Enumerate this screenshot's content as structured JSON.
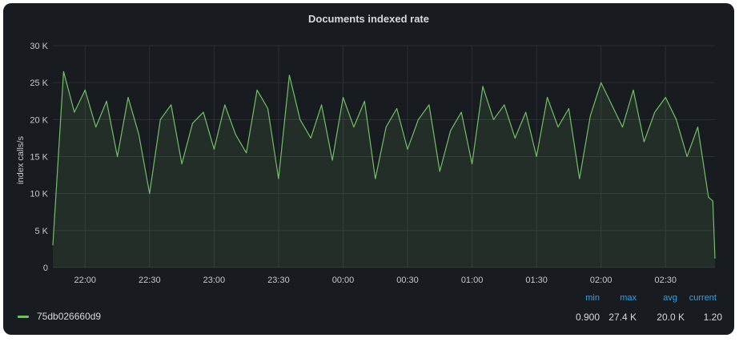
{
  "panel": {
    "title": "Documents indexed rate"
  },
  "legend": {
    "series_name": "75db026660d9",
    "headers": {
      "min": "min",
      "max": "max",
      "avg": "avg",
      "current": "current"
    },
    "values": {
      "min": "0.900",
      "max": "27.4 K",
      "avg": "20.0 K",
      "current": "1.20"
    }
  },
  "colors": {
    "series": "#73bf69",
    "fill": "rgba(115,191,105,0.12)",
    "grid": "#2c3035",
    "text": "#c7c9cc"
  },
  "chart_data": {
    "type": "area",
    "title": "Documents indexed rate",
    "xlabel": "",
    "ylabel": "index calls/s",
    "ylim": [
      0,
      30000
    ],
    "xlim": [
      "21:45",
      "02:53"
    ],
    "x_ticks": [
      "22:00",
      "22:30",
      "23:00",
      "23:30",
      "00:00",
      "00:30",
      "01:00",
      "01:30",
      "02:00",
      "02:30"
    ],
    "y_ticks": [
      "0",
      "5 K",
      "10 K",
      "15 K",
      "20 K",
      "25 K",
      "30 K"
    ],
    "grid": true,
    "legend_position": "bottom-left",
    "series": [
      {
        "name": "75db026660d9",
        "x": [
          "21:45",
          "21:50",
          "21:55",
          "22:00",
          "22:05",
          "22:10",
          "22:15",
          "22:20",
          "22:25",
          "22:30",
          "22:35",
          "22:40",
          "22:45",
          "22:50",
          "22:55",
          "23:00",
          "23:05",
          "23:10",
          "23:15",
          "23:20",
          "23:25",
          "23:30",
          "23:35",
          "23:40",
          "23:45",
          "23:50",
          "23:55",
          "00:00",
          "00:05",
          "00:10",
          "00:15",
          "00:20",
          "00:25",
          "00:30",
          "00:35",
          "00:40",
          "00:45",
          "00:50",
          "00:55",
          "01:00",
          "01:05",
          "01:10",
          "01:15",
          "01:20",
          "01:25",
          "01:30",
          "01:35",
          "01:40",
          "01:45",
          "01:50",
          "01:55",
          "02:00",
          "02:05",
          "02:10",
          "02:15",
          "02:20",
          "02:25",
          "02:30",
          "02:35",
          "02:40",
          "02:45",
          "02:50",
          "02:52",
          "02:53"
        ],
        "y": [
          3000,
          26500,
          21000,
          24000,
          19000,
          22500,
          15000,
          23000,
          18000,
          10000,
          20000,
          22000,
          14000,
          19500,
          21000,
          16000,
          22000,
          18000,
          15500,
          24000,
          21500,
          12000,
          26000,
          20000,
          17500,
          22000,
          14500,
          23000,
          19000,
          22500,
          12000,
          19000,
          21500,
          16000,
          20000,
          22000,
          13000,
          18500,
          21000,
          14000,
          24500,
          20000,
          22000,
          17500,
          21000,
          15000,
          23000,
          19000,
          21500,
          12000,
          20500,
          25000,
          22000,
          19000,
          24000,
          17000,
          21000,
          23000,
          20000,
          15000,
          19000,
          9500,
          9000,
          1200
        ]
      }
    ]
  }
}
